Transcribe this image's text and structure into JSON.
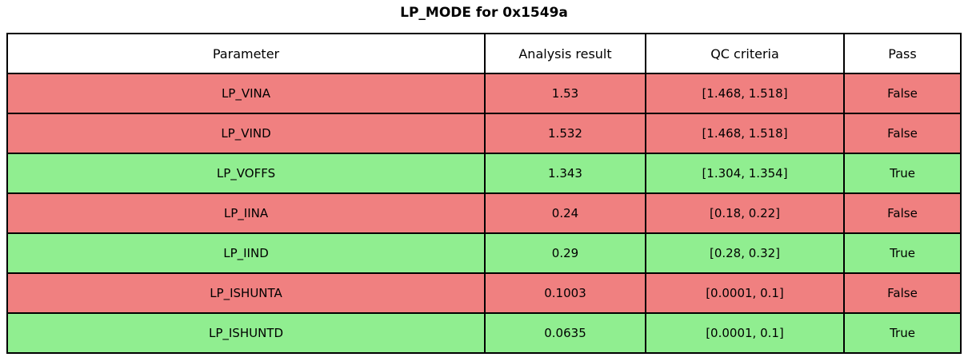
{
  "title": "LP_MODE for 0x1549a",
  "chart_data": {
    "type": "table",
    "title": "LP_MODE for 0x1549a",
    "columns": [
      "Parameter",
      "Analysis result",
      "QC criteria",
      "Pass"
    ],
    "rows": [
      {
        "parameter": "LP_VINA",
        "analysis_result": "1.53",
        "qc_criteria": "[1.468, 1.518]",
        "pass": "False",
        "row_color": "#f08080"
      },
      {
        "parameter": "LP_VIND",
        "analysis_result": "1.532",
        "qc_criteria": "[1.468, 1.518]",
        "pass": "False",
        "row_color": "#f08080"
      },
      {
        "parameter": "LP_VOFFS",
        "analysis_result": "1.343",
        "qc_criteria": "[1.304, 1.354]",
        "pass": "True",
        "row_color": "#90ee90"
      },
      {
        "parameter": "LP_IINA",
        "analysis_result": "0.24",
        "qc_criteria": "[0.18, 0.22]",
        "pass": "False",
        "row_color": "#f08080"
      },
      {
        "parameter": "LP_IIND",
        "analysis_result": "0.29",
        "qc_criteria": "[0.28, 0.32]",
        "pass": "True",
        "row_color": "#90ee90"
      },
      {
        "parameter": "LP_ISHUNTA",
        "analysis_result": "0.1003",
        "qc_criteria": "[0.0001, 0.1]",
        "pass": "False",
        "row_color": "#f08080"
      },
      {
        "parameter": "LP_ISHUNTD",
        "analysis_result": "0.0635",
        "qc_criteria": "[0.0001, 0.1]",
        "pass": "True",
        "row_color": "#90ee90"
      }
    ],
    "colors": {
      "fail_row": "#f08080",
      "pass_row": "#90ee90",
      "header_bg": "#ffffff",
      "border": "#000000",
      "text": "#000000"
    },
    "layout": {
      "legend": "none",
      "grid": "table-borders"
    }
  }
}
